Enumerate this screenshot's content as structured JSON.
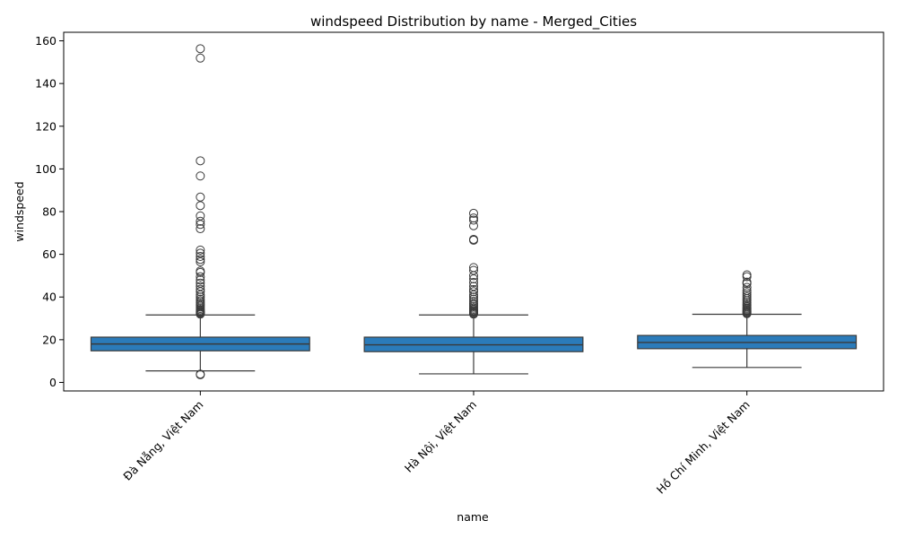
{
  "chart_data": {
    "type": "box",
    "title": "windspeed Distribution by name - Merged_Cities",
    "xlabel": "name",
    "ylabel": "windspeed",
    "ylim": [
      -4,
      164
    ],
    "yticks": [
      0,
      20,
      40,
      60,
      80,
      100,
      120,
      140,
      160
    ],
    "grid": false,
    "colors": {
      "box_fill": "#2b7bba",
      "line": "#3a3a3a",
      "axes": "#000000"
    },
    "categories": [
      "Đà Nẵng, Việt Nam",
      "Hà Nội, Việt Nam",
      "Hồ Chí Minh, Việt Nam"
    ],
    "boxes": [
      {
        "name": "Đà Nẵng, Việt Nam",
        "whisker_low": 5.4,
        "q1": 14.8,
        "median": 18.0,
        "q3": 21.2,
        "whisker_high": 31.6,
        "outliers": [
          3.6,
          3.9,
          32.0,
          32.4,
          32.8,
          33.1,
          33.5,
          34.0,
          34.6,
          35.3,
          36.0,
          36.7,
          37.4,
          38.2,
          39.0,
          40.0,
          41.0,
          42.5,
          43.6,
          45.0,
          46.5,
          48.0,
          49.5,
          51.5,
          52.2,
          56.5,
          57.6,
          59.0,
          60.5,
          62.0,
          72.0,
          74.0,
          75.5,
          78.0,
          82.8,
          86.8,
          96.7,
          103.8,
          151.9,
          156.3
        ]
      },
      {
        "name": "Hà Nội, Việt Nam",
        "whisker_low": 4.0,
        "q1": 14.4,
        "median": 17.6,
        "q3": 21.2,
        "whisker_high": 31.6,
        "outliers": [
          32.0,
          32.4,
          32.8,
          33.2,
          33.7,
          34.2,
          34.8,
          35.5,
          36.3,
          37.0,
          38.0,
          39.0,
          40.0,
          41.0,
          42.5,
          43.5,
          45.0,
          46.8,
          48.5,
          50.0,
          52.5,
          53.8,
          66.6,
          67.0,
          73.4,
          76.0,
          77.0,
          79.2
        ]
      },
      {
        "name": "Hồ Chí Minh, Việt Nam",
        "whisker_low": 7.0,
        "q1": 15.8,
        "median": 18.7,
        "q3": 22.0,
        "whisker_high": 31.9,
        "outliers": [
          32.2,
          32.6,
          33.0,
          33.4,
          33.8,
          34.3,
          34.8,
          35.4,
          36.0,
          36.7,
          37.5,
          38.3,
          39.2,
          40.1,
          41.0,
          42.0,
          43.0,
          44.5,
          46.3,
          47.0,
          49.5,
          50.4
        ]
      }
    ]
  }
}
